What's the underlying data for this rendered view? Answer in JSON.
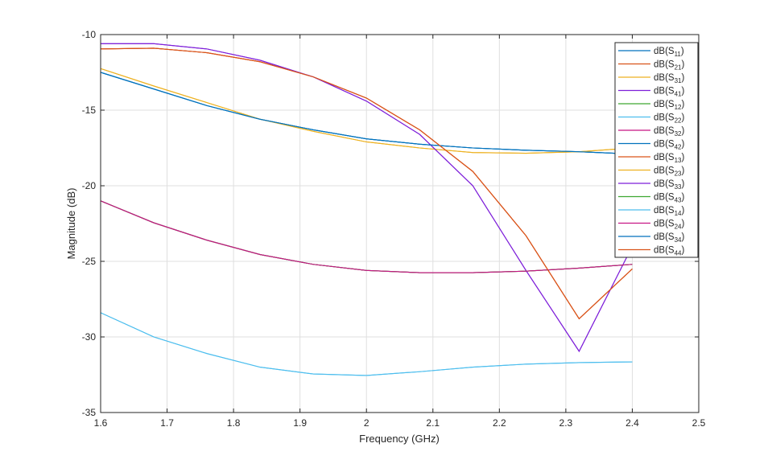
{
  "chart_data": {
    "type": "line",
    "title": "",
    "xlabel": "Frequency (GHz)",
    "ylabel": "Magnitude (dB)",
    "xlim": [
      1.6,
      2.5
    ],
    "ylim": [
      -35,
      -10
    ],
    "xticks": [
      "1.6",
      "1.7",
      "1.8",
      "1.9",
      "2",
      "2.1",
      "2.2",
      "2.3",
      "2.4",
      "2.5"
    ],
    "yticks": [
      "-10",
      "-15",
      "-20",
      "-25",
      "-30",
      "-35"
    ],
    "grid": true,
    "legend_position": "top-right",
    "x": [
      1.6,
      1.68,
      1.76,
      1.84,
      1.92,
      2.0,
      2.08,
      2.16,
      2.24,
      2.32,
      2.4
    ],
    "series": [
      {
        "name": "dB(S11)",
        "base": "dB(S",
        "sub": "11",
        "color": "#0072BD",
        "values": [
          -12.5,
          -13.6,
          -14.7,
          -15.6,
          -16.3,
          -16.9,
          -17.25,
          -17.5,
          -17.65,
          -17.75,
          -17.9
        ]
      },
      {
        "name": "dB(S21)",
        "base": "dB(S",
        "sub": "21",
        "color": "#D95319",
        "values": [
          -10.95,
          -10.9,
          -11.2,
          -11.8,
          -12.8,
          -14.2,
          -16.3,
          -19.05,
          -23.3,
          -28.8,
          -25.5
        ]
      },
      {
        "name": "dB(S31)",
        "base": "dB(S",
        "sub": "31",
        "color": "#EDB120",
        "values": [
          -12.25,
          -13.4,
          -14.5,
          -15.6,
          -16.4,
          -17.1,
          -17.5,
          -17.8,
          -17.85,
          -17.75,
          -17.5
        ]
      },
      {
        "name": "dB(S41)",
        "base": "dB(S",
        "sub": "41",
        "color": "#7E1FD9",
        "values": [
          -10.6,
          -10.6,
          -10.95,
          -11.7,
          -12.8,
          -14.4,
          -16.6,
          -20.0,
          -25.6,
          -30.95,
          -24.0
        ]
      },
      {
        "name": "dB(S12)",
        "base": "dB(S",
        "sub": "12",
        "color": "#3DA832",
        "values": [
          -21.0,
          -22.45,
          -23.6,
          -24.55,
          -25.2,
          -25.6,
          -25.75,
          -25.75,
          -25.65,
          -25.45,
          -25.2
        ]
      },
      {
        "name": "dB(S22)",
        "base": "dB(S",
        "sub": "22",
        "color": "#4DBEEE",
        "values": [
          -28.4,
          -30.0,
          -31.1,
          -32.0,
          -32.45,
          -32.55,
          -32.3,
          -32.0,
          -31.8,
          -31.7,
          -31.65
        ]
      },
      {
        "name": "dB(S32)",
        "base": "dB(S",
        "sub": "32",
        "color": "#C71585",
        "values": [
          -21.0,
          -22.45,
          -23.6,
          -24.55,
          -25.2,
          -25.6,
          -25.75,
          -25.75,
          -25.65,
          -25.45,
          -25.2
        ]
      },
      {
        "name": "dB(S42)",
        "base": "dB(S",
        "sub": "42",
        "color": "#0072BD",
        "values": [
          -12.5,
          -13.6,
          -14.7,
          -15.6,
          -16.3,
          -16.9,
          -17.25,
          -17.5,
          -17.65,
          -17.75,
          -17.9
        ]
      },
      {
        "name": "dB(S13)",
        "base": "dB(S",
        "sub": "13",
        "color": "#D95319",
        "values": [
          -10.95,
          -10.9,
          -11.2,
          -11.8,
          -12.8,
          -14.2,
          -16.3,
          -19.05,
          -23.3,
          -28.8,
          -25.5
        ]
      },
      {
        "name": "dB(S23)",
        "base": "dB(S",
        "sub": "23",
        "color": "#EDB120",
        "values": [
          -12.25,
          -13.4,
          -14.5,
          -15.6,
          -16.4,
          -17.1,
          -17.5,
          -17.8,
          -17.85,
          -17.75,
          -17.5
        ]
      },
      {
        "name": "dB(S33)",
        "base": "dB(S",
        "sub": "33",
        "color": "#7E1FD9",
        "values": [
          -10.6,
          -10.6,
          -10.95,
          -11.7,
          -12.8,
          -14.4,
          -16.6,
          -20.0,
          -25.6,
          -30.95,
          -24.0
        ]
      },
      {
        "name": "dB(S43)",
        "base": "dB(S",
        "sub": "43",
        "color": "#3DA832",
        "values": [
          -21.0,
          -22.45,
          -23.6,
          -24.55,
          -25.2,
          -25.6,
          -25.75,
          -25.75,
          -25.65,
          -25.45,
          -25.2
        ]
      },
      {
        "name": "dB(S14)",
        "base": "dB(S",
        "sub": "14",
        "color": "#4DBEEE",
        "values": [
          -28.4,
          -30.0,
          -31.1,
          -32.0,
          -32.45,
          -32.55,
          -32.3,
          -32.0,
          -31.8,
          -31.7,
          -31.65
        ]
      },
      {
        "name": "dB(S24)",
        "base": "dB(S",
        "sub": "24",
        "color": "#C71585",
        "values": [
          -21.0,
          -22.45,
          -23.6,
          -24.55,
          -25.2,
          -25.6,
          -25.75,
          -25.75,
          -25.65,
          -25.45,
          -25.2
        ]
      },
      {
        "name": "dB(S34)",
        "base": "dB(S",
        "sub": "34",
        "color": "#0072BD",
        "values": [
          -12.5,
          -13.6,
          -14.7,
          -15.6,
          -16.3,
          -16.9,
          -17.25,
          -17.5,
          -17.65,
          -17.75,
          -17.9
        ]
      },
      {
        "name": "dB(S44)",
        "base": "dB(S",
        "sub": "44",
        "color": "#D95319",
        "values": [
          -10.95,
          -10.9,
          -11.2,
          -11.8,
          -12.8,
          -14.2,
          -16.3,
          -19.05,
          -23.3,
          -28.8,
          -25.5
        ]
      }
    ]
  }
}
